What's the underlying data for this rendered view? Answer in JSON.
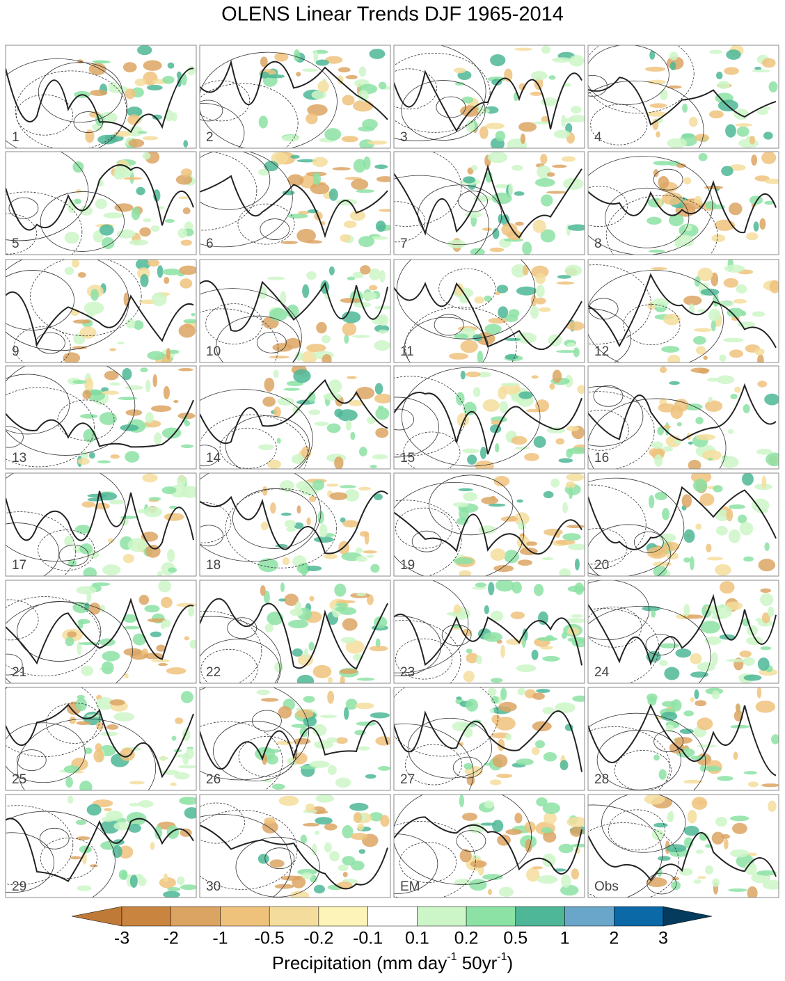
{
  "title": "OLENS Linear Trends DJF 1965-2014",
  "panels": [
    "1",
    "2",
    "3",
    "4",
    "5",
    "6",
    "7",
    "8",
    "9",
    "10",
    "11",
    "12",
    "13",
    "14",
    "15",
    "16",
    "17",
    "18",
    "19",
    "20",
    "21",
    "22",
    "23",
    "24",
    "25",
    "26",
    "27",
    "28",
    "29",
    "30",
    "EM",
    "Obs"
  ],
  "colorbar": {
    "ticks": [
      -3,
      -2,
      -1,
      -0.5,
      -0.2,
      -0.1,
      0.1,
      0.2,
      0.5,
      1,
      2,
      3
    ],
    "colors": [
      "#bf7a38",
      "#c9843f",
      "#dca463",
      "#efc27c",
      "#f4dd9c",
      "#fcf4b8",
      "#ffffff",
      "#ccf6c8",
      "#8ce2a5",
      "#4eb797",
      "#6aa6c9",
      "#0a69a6",
      "#053b5c"
    ],
    "label": {
      "text": "Precipitation (mm day",
      "sup1": "-1",
      "mid": " 50yr",
      "sup2": "-1",
      "end": ")"
    }
  }
}
